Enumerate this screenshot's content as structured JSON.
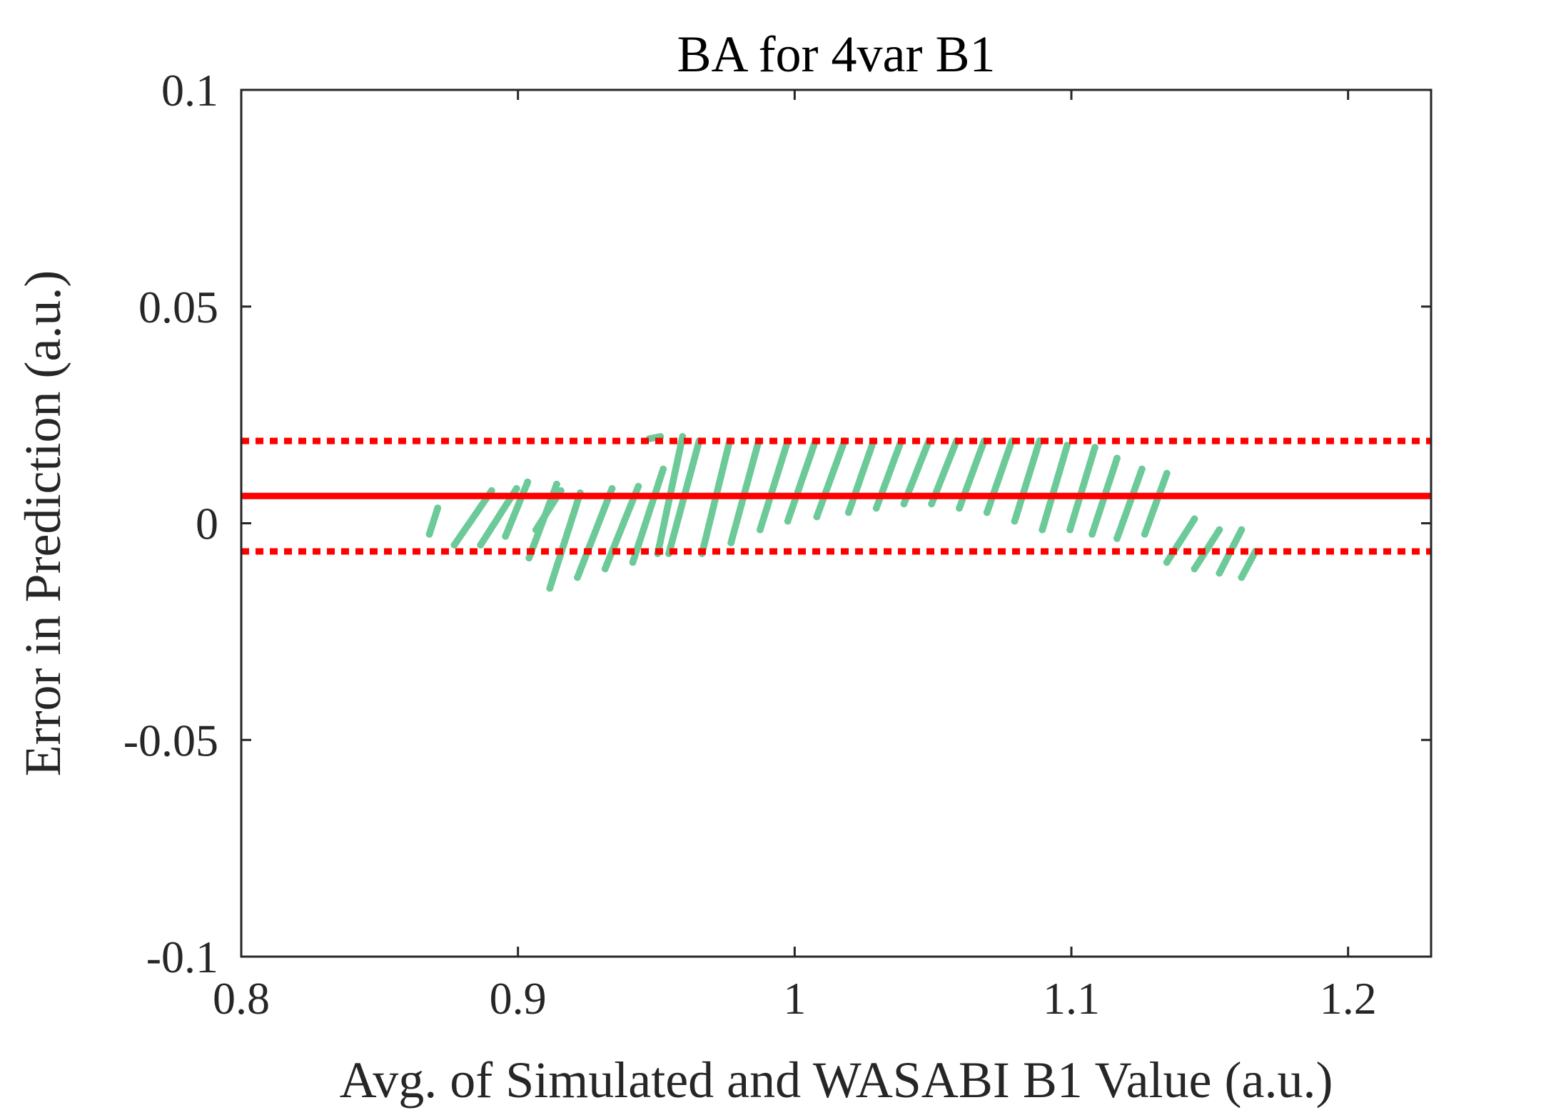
{
  "chart_data": {
    "type": "scatter",
    "title": "BA for 4var B1",
    "xlabel": "Avg. of Simulated and WASABI B1 Value (a.u.)",
    "ylabel": "Error in Prediction (a.u.)",
    "xlim": [
      0.8,
      1.23
    ],
    "ylim": [
      -0.1,
      0.1
    ],
    "xticks": [
      0.8,
      0.9,
      1.0,
      1.1,
      1.2
    ],
    "xtick_labels": [
      "0.8",
      "0.9",
      "1",
      "1.1",
      "1.2"
    ],
    "yticks": [
      -0.1,
      -0.05,
      0,
      0.05,
      0.1
    ],
    "ytick_labels": [
      "-0.1",
      "-0.05",
      "0",
      "0.05",
      "0.1"
    ],
    "grid": false,
    "colors": {
      "points": "#6cc998",
      "lines": "#ff0000",
      "axes": "#262626"
    },
    "mean_line": 0.0063,
    "limits_of_agreement": [
      -0.0065,
      0.019
    ],
    "point_segments": [
      {
        "x": [
          0.868,
          0.871
        ],
        "y": [
          -0.0025,
          0.0035
        ]
      },
      {
        "x": [
          0.877,
          0.8905
        ],
        "y": [
          -0.005,
          0.0075
        ]
      },
      {
        "x": [
          0.8865,
          0.8995
        ],
        "y": [
          -0.005,
          0.008
        ]
      },
      {
        "x": [
          0.8955,
          0.9035
        ],
        "y": [
          -0.003,
          0.0095
        ]
      },
      {
        "x": [
          0.904,
          0.914
        ],
        "y": [
          -0.008,
          0.009
        ]
      },
      {
        "x": [
          0.9065,
          0.9155
        ],
        "y": [
          -0.0015,
          0.0075
        ]
      },
      {
        "x": [
          0.9115,
          0.9225
        ],
        "y": [
          -0.015,
          0.007
        ]
      },
      {
        "x": [
          0.9215,
          0.934
        ],
        "y": [
          -0.0125,
          0.008
        ]
      },
      {
        "x": [
          0.9315,
          0.9435
        ],
        "y": [
          -0.0105,
          0.0085
        ]
      },
      {
        "x": [
          0.9415,
          0.9525
        ],
        "y": [
          -0.009,
          0.0125
        ]
      },
      {
        "x": [
          0.9475,
          0.9515
        ],
        "y": [
          0.0195,
          0.02
        ]
      },
      {
        "x": [
          0.9505,
          0.9595
        ],
        "y": [
          -0.007,
          0.02
        ]
      },
      {
        "x": [
          0.9545,
          0.9655
        ],
        "y": [
          -0.007,
          0.019
        ]
      },
      {
        "x": [
          0.9665,
          0.9765
        ],
        "y": [
          -0.007,
          0.019
        ]
      },
      {
        "x": [
          0.977,
          0.987
        ],
        "y": [
          -0.0045,
          0.019
        ]
      },
      {
        "x": [
          0.9875,
          0.9975
        ],
        "y": [
          -0.0015,
          0.019
        ]
      },
      {
        "x": [
          0.9975,
          1.0075
        ],
        "y": [
          0.0005,
          0.019
        ]
      },
      {
        "x": [
          1.008,
          1.018
        ],
        "y": [
          0.0015,
          0.019
        ]
      },
      {
        "x": [
          1.0195,
          1.0285
        ],
        "y": [
          0.0025,
          0.019
        ]
      },
      {
        "x": [
          1.0295,
          1.0385
        ],
        "y": [
          0.0035,
          0.019
        ]
      },
      {
        "x": [
          1.0395,
          1.0485
        ],
        "y": [
          0.0045,
          0.019
        ]
      },
      {
        "x": [
          1.0495,
          1.0585
        ],
        "y": [
          0.0045,
          0.019
        ]
      },
      {
        "x": [
          1.0595,
          1.0685
        ],
        "y": [
          0.0035,
          0.019
        ]
      },
      {
        "x": [
          1.0695,
          1.0785
        ],
        "y": [
          0.0025,
          0.019
        ]
      },
      {
        "x": [
          1.0795,
          1.0885
        ],
        "y": [
          0.0005,
          0.019
        ]
      },
      {
        "x": [
          1.0895,
          1.0985
        ],
        "y": [
          -0.0015,
          0.018
        ]
      },
      {
        "x": [
          1.0995,
          1.1085
        ],
        "y": [
          -0.0015,
          0.0175
        ]
      },
      {
        "x": [
          1.1075,
          1.1165
        ],
        "y": [
          -0.0025,
          0.015
        ]
      },
      {
        "x": [
          1.1165,
          1.1255
        ],
        "y": [
          -0.0035,
          0.0125
        ]
      },
      {
        "x": [
          1.1265,
          1.1345
        ],
        "y": [
          -0.0025,
          0.0115
        ]
      },
      {
        "x": [
          1.1345,
          1.1445
        ],
        "y": [
          -0.009,
          0.001
        ]
      },
      {
        "x": [
          1.1445,
          1.1535
        ],
        "y": [
          -0.0105,
          -0.0015
        ]
      },
      {
        "x": [
          1.1535,
          1.1615
        ],
        "y": [
          -0.0115,
          -0.0015
        ]
      },
      {
        "x": [
          1.1615,
          1.1665
        ],
        "y": [
          -0.0125,
          -0.0065
        ]
      }
    ]
  }
}
